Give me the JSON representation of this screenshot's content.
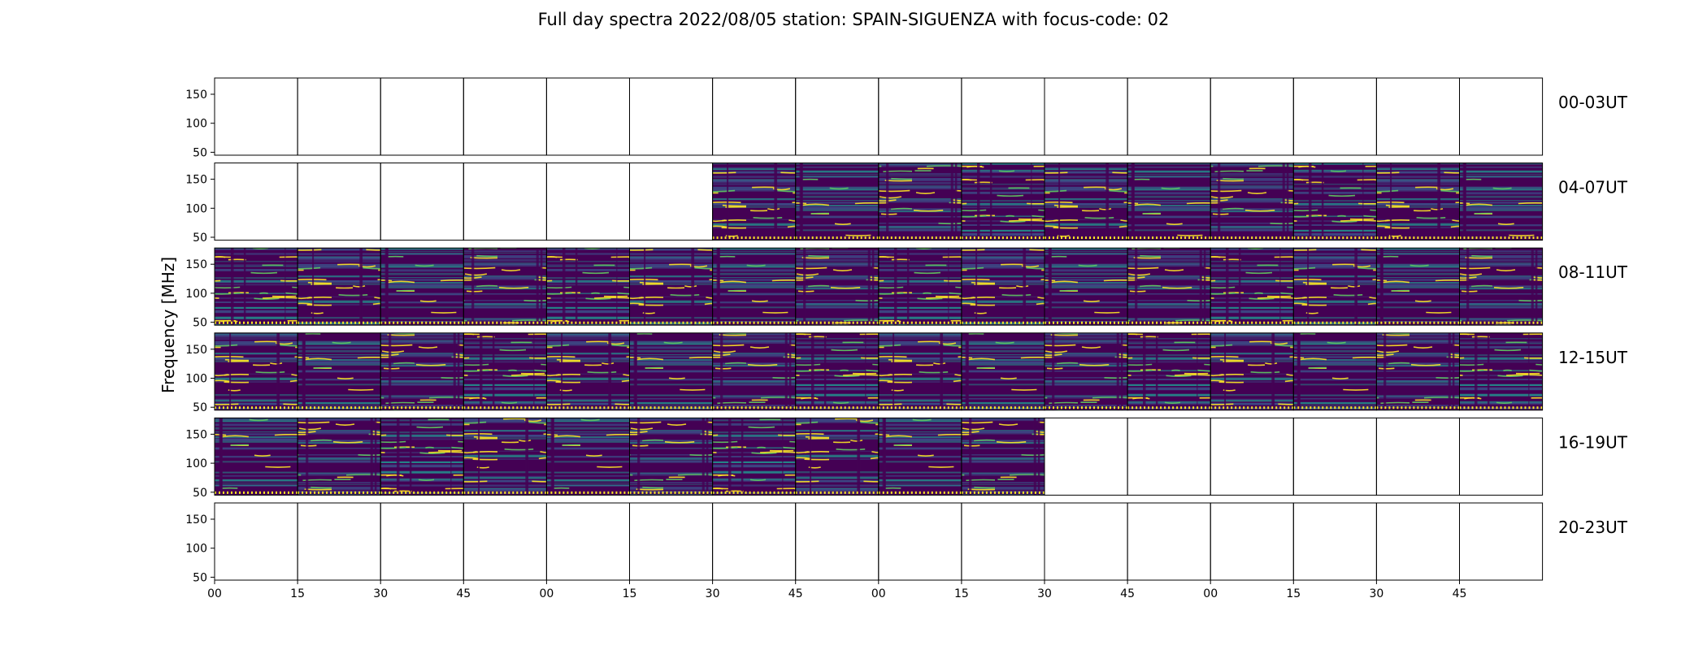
{
  "chart_data": {
    "type": "heatmap",
    "title": "Full day spectra 2022/08/05 station: SPAIN-SIGUENZA with focus-code: 02",
    "xlabel": "",
    "ylabel": "Frequency [MHz]",
    "colormap": "viridis",
    "colormap_stops": [
      "#440154",
      "#3b528b",
      "#21918c",
      "#5ec962",
      "#fde725"
    ],
    "ylim": [
      45,
      178
    ],
    "yticks": [
      "50",
      "100",
      "150"
    ],
    "ytick_values": [
      50,
      100,
      150
    ],
    "xtick_labels": [
      "00",
      "15",
      "30",
      "45",
      "00",
      "15",
      "30",
      "45",
      "00",
      "15",
      "30",
      "45",
      "00",
      "15",
      "30",
      "45"
    ],
    "minutes_per_panel": 15,
    "panels_per_row": 16,
    "rows": [
      {
        "label": "00-03UT",
        "start_hour": 0,
        "data_minutes": []
      },
      {
        "label": "04-07UT",
        "start_hour": 4,
        "data_minutes": [
          [
            90,
            240
          ]
        ]
      },
      {
        "label": "08-11UT",
        "start_hour": 8,
        "data_minutes": [
          [
            0,
            240
          ]
        ]
      },
      {
        "label": "12-15UT",
        "start_hour": 12,
        "data_minutes": [
          [
            0,
            240
          ]
        ]
      },
      {
        "label": "16-19UT",
        "start_hour": 16,
        "data_minutes": [
          [
            0,
            150
          ]
        ]
      },
      {
        "label": "20-23UT",
        "start_hour": 20,
        "data_minutes": []
      }
    ],
    "grid": false
  }
}
